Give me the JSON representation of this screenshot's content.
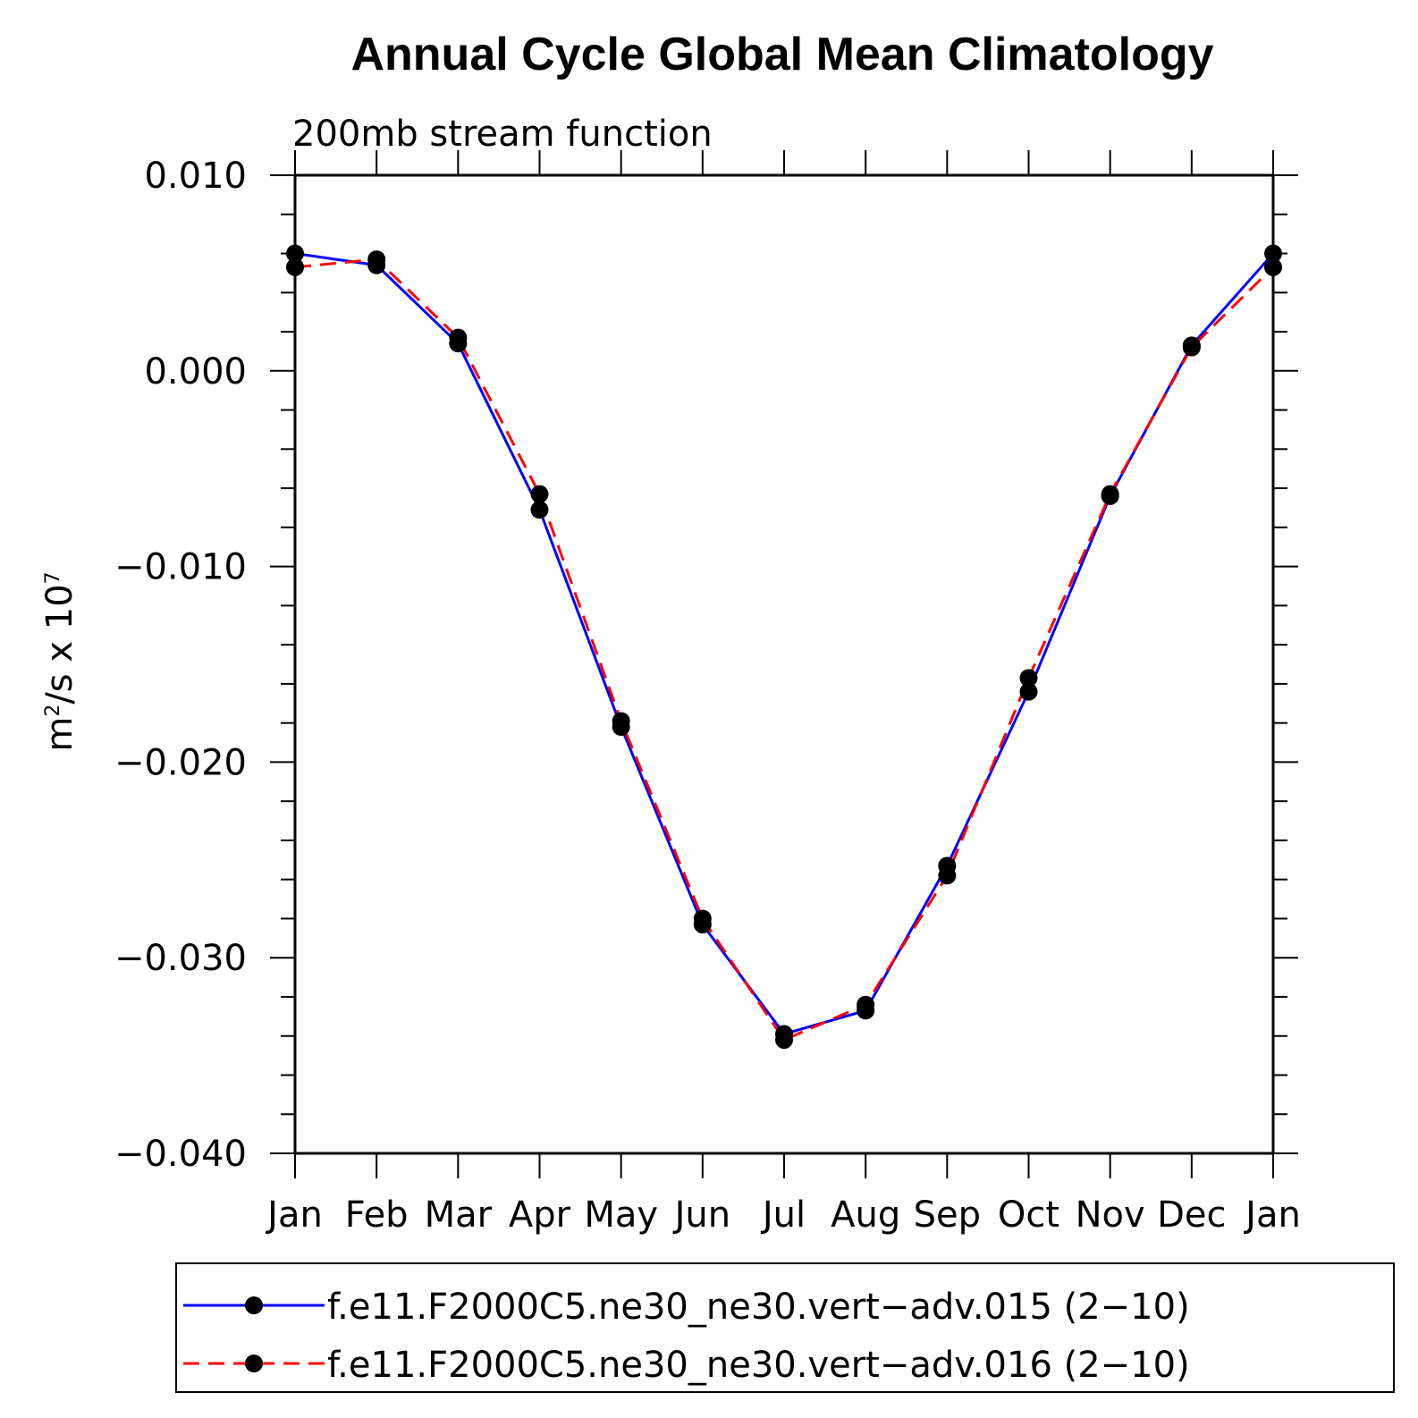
{
  "chart_data": {
    "type": "line",
    "title": "Annual Cycle Global Mean Climatology",
    "subtitle": "200mb stream function",
    "ylabel_base": "m",
    "ylabel_exp": "2",
    "ylabel_mid": "/s x 10",
    "ylabel_exp2": "7",
    "categories": [
      "Jan",
      "Feb",
      "Mar",
      "Apr",
      "May",
      "Jun",
      "Jul",
      "Aug",
      "Sep",
      "Oct",
      "Nov",
      "Dec",
      "Jan"
    ],
    "ylim": [
      -0.04,
      0.01
    ],
    "y_ticks": [
      "0.010",
      "0.000",
      "−0.010",
      "−0.020",
      "−0.030",
      "−0.040"
    ],
    "y_tick_values": [
      0.01,
      0.0,
      -0.01,
      -0.02,
      -0.03,
      -0.04
    ],
    "grid": false,
    "legend_position": "bottom",
    "series": [
      {
        "name": "f.e11.F2000C5.ne30_ne30.vert−adv.015 (2−10)",
        "color": "#0000ff",
        "style": "solid",
        "values": [
          0.006,
          0.0054,
          0.0014,
          -0.0071,
          -0.0182,
          -0.0283,
          -0.0339,
          -0.0327,
          -0.0253,
          -0.0164,
          -0.0064,
          0.0013,
          0.006
        ]
      },
      {
        "name": "f.e11.F2000C5.ne30_ne30.vert−adv.016 (2−10)",
        "color": "#ff0000",
        "style": "dashed",
        "values": [
          0.0053,
          0.0057,
          0.0017,
          -0.0063,
          -0.0179,
          -0.028,
          -0.0342,
          -0.0324,
          -0.0258,
          -0.0157,
          -0.0063,
          0.0012,
          0.0053
        ]
      }
    ]
  }
}
